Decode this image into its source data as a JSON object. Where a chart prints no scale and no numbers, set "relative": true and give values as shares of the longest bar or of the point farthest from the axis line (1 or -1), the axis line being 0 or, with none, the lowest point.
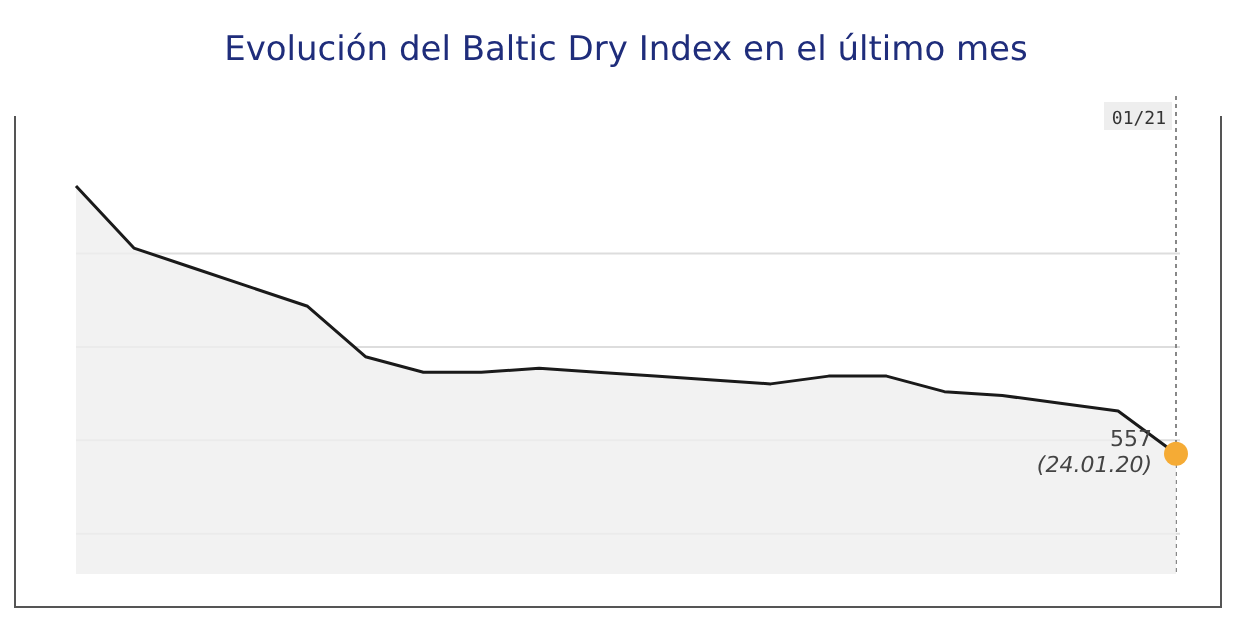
{
  "chart_data": {
    "type": "area",
    "title": "Evolución del Baltic Dry Index en el último mes",
    "relative": true,
    "grid": true,
    "categories": [
      null,
      null,
      null,
      null,
      null,
      null,
      null,
      null,
      null,
      null,
      null,
      null,
      null,
      null,
      null,
      null,
      null,
      null,
      null,
      null
    ],
    "series": [
      {
        "color": "#1a1a1a",
        "values": [
          1,
          0.84,
          0.79,
          0.74,
          0.69,
          0.56,
          0.52,
          0.52,
          0.53,
          0.52,
          0.51,
          0.5,
          0.49,
          0.51,
          0.51,
          0.47,
          0.46,
          0.44,
          0.42,
          0.31
        ]
      }
    ],
    "annotations": [
      "01/21",
      "557",
      "(24.01.20)"
    ]
  }
}
